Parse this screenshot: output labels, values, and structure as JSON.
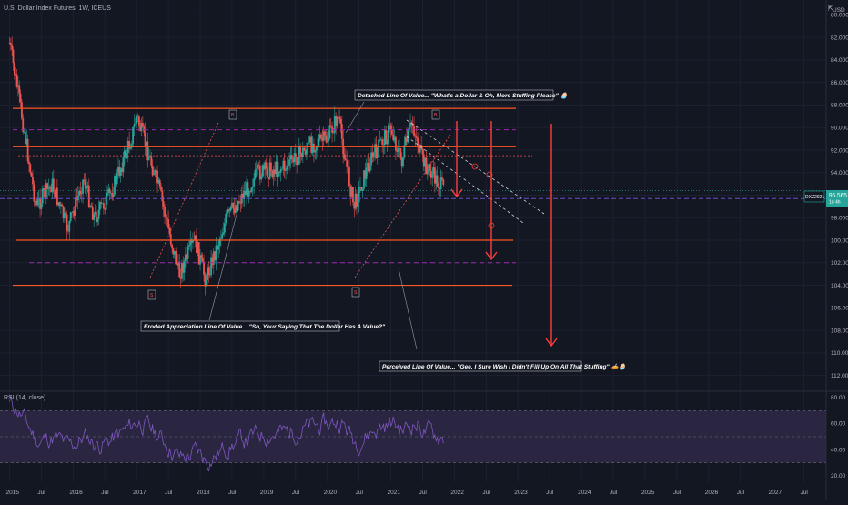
{
  "header": {
    "title": "U.S. Dollar Index Futures, 1W, ICEUS",
    "settings_icon": "expand-icon"
  },
  "rsi": {
    "label": "RSI (14, close)",
    "upper": 70,
    "lower": 30,
    "mid": 50,
    "ticks": [
      "80.00",
      "60.00",
      "40.00",
      "20.00"
    ]
  },
  "price_axis": {
    "ticks": [
      "USD",
      "80.000",
      "82.000",
      "84.000",
      "86.000",
      "88.000",
      "90.000",
      "92.000",
      "94.000",
      "96.000",
      "98.000",
      "100.000",
      "102.000",
      "104.000",
      "106.000",
      "108.000",
      "110.000",
      "112.000"
    ],
    "current_symbol": "DXZ2021",
    "current_price": "95.565",
    "current_countdown": "1d 4h",
    "inverted": true
  },
  "time_axis": {
    "ticks": [
      "2015",
      "Jul",
      "2016",
      "Jul",
      "2017",
      "Jul",
      "2018",
      "Jul",
      "2019",
      "Jul",
      "2020",
      "Jul",
      "2021",
      "Jul",
      "2022",
      "Jul",
      "2023",
      "Jul",
      "2024",
      "Jul",
      "2025",
      "Jul",
      "2026",
      "Jul",
      "2027",
      "Jul"
    ]
  },
  "annotations": {
    "detached": "Detached Line Of Value... \"What's a Dollar & Oh, More Stuffing Please\" 🧁",
    "eroded": "Eroded Appreciation Line Of Value... \"So, Your Saying That The Dollar Has A Value?\"",
    "perceived": "Perceived Line Of Value... \"Gee, I Sure Wish I Didn't Fill Up On All That Stuffing\" 🥧🧁"
  },
  "markers": {
    "high": "B",
    "low": "S"
  },
  "colors": {
    "background": "#131722",
    "candle_up": "#26a69a",
    "candle_down": "#ef5350",
    "level_line": "#ff5722",
    "dashed_purple": "#9c27b0",
    "dashed_red": "#ef5350",
    "arrow": "#ff3d3d",
    "rsi_line": "#7e57c2",
    "rsi_band": "#2a2540",
    "price_tag": "#26a69a"
  },
  "chart_data": {
    "type": "candlestick",
    "y_inverted": true,
    "ylim": [
      79,
      113
    ],
    "x_range": [
      "2015-01",
      "2027-12"
    ],
    "price_path": [
      [
        "2015-01",
        82.5
      ],
      [
        "2015-03",
        88.0
      ],
      [
        "2015-06",
        97.0
      ],
      [
        "2015-09",
        95.0
      ],
      [
        "2015-12",
        99.0
      ],
      [
        "2016-03",
        94.5
      ],
      [
        "2016-05",
        98.0
      ],
      [
        "2016-08",
        96.0
      ],
      [
        "2016-12",
        91.0
      ],
      [
        "2017-01",
        89.0
      ],
      [
        "2017-05",
        95.0
      ],
      [
        "2017-09",
        103.0
      ],
      [
        "2017-12",
        100.0
      ],
      [
        "2018-02",
        103.5
      ],
      [
        "2018-06",
        98.0
      ],
      [
        "2018-12",
        94.0
      ],
      [
        "2019-05",
        93.5
      ],
      [
        "2019-10",
        91.5
      ],
      [
        "2020-01",
        91.0
      ],
      [
        "2020-03",
        89.0
      ],
      [
        "2020-06",
        97.0
      ],
      [
        "2020-09",
        93.0
      ],
      [
        "2021-01",
        90.0
      ],
      [
        "2021-03",
        93.0
      ],
      [
        "2021-05",
        89.5
      ],
      [
        "2021-07",
        93.0
      ],
      [
        "2021-11",
        95.565
      ]
    ],
    "horizontal_levels": [
      88.3,
      91.7,
      100.0,
      104.0
    ],
    "dashed_levels": [
      90.2,
      92.5,
      96.3,
      102.0
    ]
  }
}
